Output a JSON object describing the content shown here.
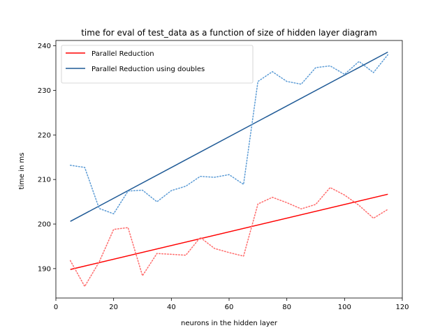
{
  "chart_data": {
    "type": "line",
    "title": "time for eval of test_data as a function of size of hidden layer diagram",
    "xlabel": "neurons in the hidden layer",
    "ylabel": "time in ms",
    "xlim": [
      0,
      120
    ],
    "ylim": [
      183.4,
      241.2
    ],
    "xticks": [
      0,
      20,
      40,
      60,
      80,
      100,
      120
    ],
    "yticks": [
      190,
      200,
      210,
      220,
      230,
      240
    ],
    "grid": false,
    "legend_position": "upper-left",
    "x": [
      5,
      10,
      15,
      20,
      25,
      30,
      35,
      40,
      45,
      50,
      55,
      60,
      65,
      70,
      75,
      80,
      85,
      90,
      95,
      100,
      105,
      110,
      115
    ],
    "series": [
      {
        "name": "Parallel Reduction",
        "style": "trend",
        "color": "#ff0000",
        "x": [
          5,
          115
        ],
        "values": [
          189.8,
          206.7
        ]
      },
      {
        "name": "Parallel Reduction using doubles",
        "style": "trend",
        "color": "#1f5a96",
        "x": [
          5,
          115
        ],
        "values": [
          200.6,
          238.6
        ]
      },
      {
        "name": "",
        "style": "dotted",
        "color": "#ff6b6b",
        "values": [
          191.8,
          186.0,
          191.5,
          198.8,
          199.2,
          188.4,
          193.4,
          193.2,
          193.0,
          197.0,
          194.5,
          193.6,
          192.8,
          204.5,
          206.0,
          204.8,
          203.4,
          204.4,
          208.2,
          206.5,
          204.2,
          201.3,
          203.3
        ]
      },
      {
        "name": "",
        "style": "dotted",
        "color": "#5b9bd5",
        "values": [
          213.2,
          212.7,
          203.5,
          202.3,
          207.4,
          207.6,
          205.0,
          207.5,
          208.5,
          210.7,
          210.5,
          211.1,
          208.9,
          232.0,
          234.2,
          232.0,
          231.4,
          235.1,
          235.5,
          233.6,
          236.5,
          234.0,
          238.0
        ]
      }
    ]
  }
}
